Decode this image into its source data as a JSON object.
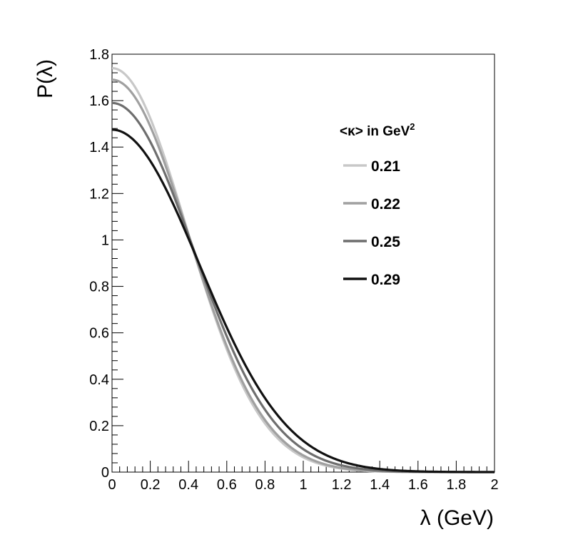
{
  "chart_data": {
    "type": "line",
    "title": "",
    "xlabel": "λ (GeV)",
    "ylabel": "P(λ)",
    "xlim": [
      0,
      2
    ],
    "ylim": [
      0,
      1.8
    ],
    "x_ticks": [
      "0",
      "0.2",
      "0.4",
      "0.6",
      "0.8",
      "1",
      "1.2",
      "1.4",
      "1.6",
      "1.8",
      "2"
    ],
    "y_ticks": [
      "0",
      "0.2",
      "0.4",
      "0.6",
      "0.8",
      "1",
      "1.2",
      "1.4",
      "1.6",
      "1.8"
    ],
    "legend": {
      "title_prefix": "<κ> in GeV",
      "title_superscript": "2",
      "placement": "top-right"
    },
    "series": [
      {
        "name": "0.21",
        "color": "#c8c8c8",
        "kappa": 0.21,
        "peak": 1.74
      },
      {
        "name": "0.22",
        "color": "#a0a0a0",
        "kappa": 0.22,
        "peak": 1.69
      },
      {
        "name": "0.25",
        "color": "#6e6e6e",
        "kappa": 0.25,
        "peak": 1.59
      },
      {
        "name": "0.29",
        "color": "#111111",
        "kappa": 0.29,
        "peak": 1.475
      }
    ]
  }
}
